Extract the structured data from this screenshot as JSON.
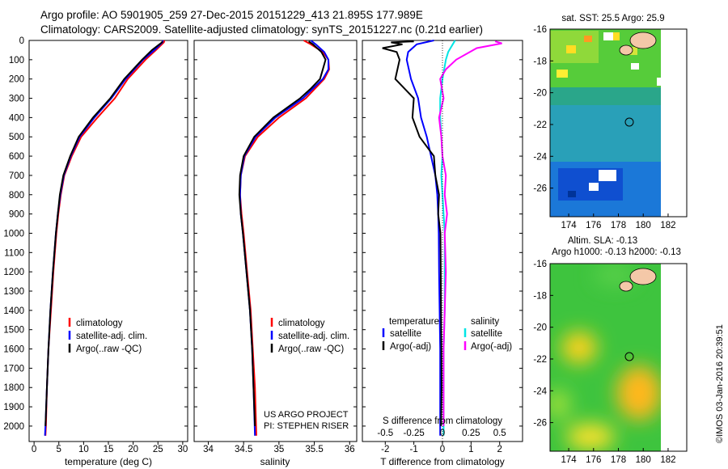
{
  "header": {
    "line1": "Argo profile: AO 5901905_259 27-Dec-2015 20151229_413 21.895S 177.989E",
    "line2": "Climatology: CARS2009. Satellite-adjusted climatology: synTS_20151227.nc (0.21d earlier)"
  },
  "map_sst_title": "sat. SST: 25.5 Argo: 25.9",
  "map_sla_title1": "Altim. SLA: -0.13",
  "map_sla_title2": "Argo h1000: -0.13 h2000: -0.13",
  "side_stamp": "©IMOS 03-Jan-2016 20:39:51",
  "project_line1": "US ARGO PROJECT",
  "project_line2": "PI: STEPHEN RISER",
  "colors": {
    "climatology": "#ff0000",
    "satellite": "#0000ff",
    "argo": "#000000",
    "sal_satellite": "#00e5e5",
    "sal_argo": "#ff00ff"
  },
  "chart_data": [
    {
      "type": "line",
      "xlabel": "temperature (deg C)",
      "ylabel": "",
      "xlim": [
        -1,
        31
      ],
      "ylim": [
        2080,
        0
      ],
      "xticks": [
        "0",
        "5",
        "10",
        "15",
        "20",
        "25",
        "30"
      ],
      "yticks": [
        "0",
        "100",
        "200",
        "300",
        "400",
        "500",
        "600",
        "700",
        "800",
        "900",
        "1000",
        "1100",
        "1200",
        "1300",
        "1400",
        "1500",
        "1600",
        "1700",
        "1800",
        "1900",
        "2000"
      ],
      "legend": [
        "climatology",
        "satellite-adj. clim.",
        "Argo(..raw -QC)"
      ],
      "legend_position": "lower-center",
      "series": [
        {
          "name": "climatology",
          "color": "#ff0000",
          "depth": [
            0,
            10,
            50,
            100,
            200,
            300,
            400,
            500,
            600,
            700,
            800,
            900,
            1000,
            1200,
            1400,
            1600,
            1800,
            2000,
            2050
          ],
          "values": [
            26.3,
            26.2,
            24.6,
            22.5,
            18.9,
            16.3,
            12.8,
            9.5,
            7.6,
            6.1,
            5.4,
            4.9,
            4.5,
            3.9,
            3.4,
            2.9,
            2.6,
            2.4,
            2.3
          ]
        },
        {
          "name": "satellite-adj. clim.",
          "color": "#0000ff",
          "depth": [
            0,
            10,
            50,
            100,
            200,
            300,
            400,
            500,
            600,
            700,
            800,
            900,
            1000,
            1200,
            1400,
            1600,
            1800,
            2000,
            2050
          ],
          "values": [
            26.0,
            25.9,
            24.3,
            22.0,
            18.5,
            15.6,
            12.2,
            9.2,
            7.4,
            6.0,
            5.3,
            4.8,
            4.4,
            3.8,
            3.3,
            2.9,
            2.6,
            2.3,
            2.2
          ]
        },
        {
          "name": "Argo(..raw -QC)",
          "color": "#000000",
          "depth": [
            5,
            10,
            50,
            100,
            200,
            300,
            400,
            500,
            600,
            700,
            800,
            900,
            1000,
            1200,
            1400,
            1600,
            1800,
            2000
          ],
          "values": [
            25.9,
            25.8,
            23.8,
            21.8,
            18.2,
            15.4,
            11.9,
            9.0,
            7.3,
            5.9,
            5.2,
            4.8,
            4.4,
            3.8,
            3.3,
            2.9,
            2.6,
            2.3
          ]
        }
      ]
    },
    {
      "type": "line",
      "xlabel": "salinity",
      "ylabel": "",
      "xlim": [
        33.8,
        36.1
      ],
      "ylim": [
        2080,
        0
      ],
      "xticks": [
        "34",
        "34.5",
        "35",
        "35.5",
        "36"
      ],
      "legend": [
        "climatology",
        "satellite-adj. clim.",
        "Argo(..raw -QC)"
      ],
      "legend_position": "lower-center",
      "series": [
        {
          "name": "climatology",
          "color": "#ff0000",
          "depth": [
            0,
            20,
            60,
            100,
            150,
            200,
            300,
            400,
            500,
            600,
            700,
            800,
            900,
            1000,
            1200,
            1400,
            1600,
            1800,
            2050
          ],
          "values": [
            35.35,
            35.45,
            35.62,
            35.7,
            35.71,
            35.64,
            35.38,
            35.0,
            34.7,
            34.52,
            34.46,
            34.45,
            34.47,
            34.5,
            34.55,
            34.6,
            34.63,
            34.66,
            34.68
          ]
        },
        {
          "name": "satellite-adj. clim.",
          "color": "#0000ff",
          "depth": [
            0,
            20,
            60,
            100,
            150,
            200,
            300,
            400,
            500,
            600,
            700,
            800,
            900,
            1000,
            1200,
            1400,
            1600,
            1800,
            2050
          ],
          "values": [
            35.45,
            35.52,
            35.64,
            35.7,
            35.7,
            35.62,
            35.34,
            34.95,
            34.67,
            34.51,
            34.46,
            34.45,
            34.46,
            34.49,
            34.54,
            34.59,
            34.62,
            34.64,
            34.66
          ]
        },
        {
          "name": "Argo(..raw -QC)",
          "color": "#000000",
          "depth": [
            5,
            20,
            60,
            100,
            150,
            200,
            250,
            300,
            400,
            500,
            600,
            700,
            800,
            900,
            1000,
            1200,
            1400,
            1600,
            1800,
            2000
          ],
          "values": [
            35.42,
            35.48,
            35.6,
            35.66,
            35.62,
            35.58,
            35.45,
            35.3,
            34.92,
            34.65,
            34.5,
            34.45,
            34.44,
            34.46,
            34.49,
            34.54,
            34.59,
            34.62,
            34.64,
            34.66
          ]
        }
      ]
    },
    {
      "type": "line",
      "xlabel": "T difference from climatology",
      "x2label": "S difference from climatology",
      "xlim": [
        -2.8,
        2.8
      ],
      "x2lim": [
        -0.7,
        0.7
      ],
      "ylim": [
        2080,
        0
      ],
      "xticks": [
        "-2",
        "-1",
        "0",
        "1",
        "2"
      ],
      "x2ticks": [
        "-0.5",
        "-0.25",
        "0",
        "0.25",
        "0.5"
      ],
      "legend_temperature_title": "temperature",
      "legend_salinity_title": "salinity",
      "legend_satellite": "satellite",
      "legend_argo": "Argo(-adj)",
      "series": [
        {
          "name": "temperature satellite",
          "color": "#0000ff",
          "depth": [
            0,
            20,
            60,
            100,
            200,
            300,
            400,
            500,
            600,
            700,
            800,
            900,
            1000,
            1200,
            1400,
            1600,
            1800,
            2050
          ],
          "values": [
            -0.3,
            -0.9,
            -1.2,
            -1.25,
            -1.1,
            -0.85,
            -0.75,
            -0.55,
            -0.4,
            -0.25,
            -0.18,
            -0.15,
            -0.13,
            -0.12,
            -0.1,
            -0.08,
            -0.08,
            -0.08
          ]
        },
        {
          "name": "temperature Argo(-adj)",
          "color": "#000000",
          "depth": [
            5,
            10,
            20,
            40,
            60,
            100,
            200,
            300,
            400,
            500,
            600,
            700,
            800,
            900,
            1000,
            1200,
            1400,
            1600,
            1800,
            2000
          ],
          "values": [
            -1.0,
            -1.8,
            -1.4,
            -2.1,
            -1.6,
            -1.5,
            -1.65,
            -1.0,
            -1.05,
            -0.8,
            -0.3,
            -0.25,
            -0.12,
            -0.15,
            -0.07,
            -0.06,
            -0.05,
            -0.04,
            -0.03,
            -0.05
          ]
        },
        {
          "name": "salinity satellite",
          "color": "#00e5e5",
          "depth": [
            0,
            20,
            60,
            100,
            200,
            300,
            400,
            500,
            600,
            700,
            800,
            900,
            1000,
            1200,
            1400,
            1600,
            1800,
            2050
          ],
          "values": [
            0.11,
            0.09,
            0.05,
            0.03,
            0.0,
            -0.02,
            -0.02,
            -0.01,
            0.0,
            -0.01,
            0.0,
            0.01,
            0.02,
            0.02,
            0.02,
            0.01,
            0.01,
            0.01
          ]
        },
        {
          "name": "salinity Argo(-adj)",
          "color": "#ff00ff",
          "depth": [
            5,
            15,
            40,
            100,
            150,
            200,
            300,
            400,
            500,
            600,
            700,
            800,
            900,
            1000,
            1200,
            1400,
            1600,
            1800,
            2000
          ],
          "values": [
            0.46,
            0.52,
            0.3,
            0.12,
            0.03,
            -0.02,
            0.01,
            -0.03,
            -0.01,
            0.0,
            0.03,
            0.02,
            0.04,
            0.02,
            0.03,
            0.02,
            0.01,
            0.01,
            0.01
          ]
        }
      ]
    },
    {
      "type": "heatmap",
      "title": "sat. SST: 25.5 Argo: 25.9",
      "xlim": [
        172.5,
        183.5
      ],
      "ylim": [
        -27.8,
        -16
      ],
      "xticks": [
        "174",
        "176",
        "178",
        "180",
        "182"
      ],
      "yticks": [
        "-16",
        "-18",
        "-20",
        "-22",
        "-24",
        "-26"
      ],
      "argo_position": {
        "lon": 178.0,
        "lat": -21.9
      }
    },
    {
      "type": "heatmap",
      "title": "Altim. SLA: -0.13",
      "xlim": [
        172.5,
        183.5
      ],
      "ylim": [
        -27.8,
        -16
      ],
      "xticks": [
        "174",
        "176",
        "178",
        "180",
        "182"
      ],
      "yticks": [
        "-16",
        "-18",
        "-20",
        "-22",
        "-24",
        "-26"
      ],
      "argo_position": {
        "lon": 178.0,
        "lat": -21.9
      }
    }
  ]
}
